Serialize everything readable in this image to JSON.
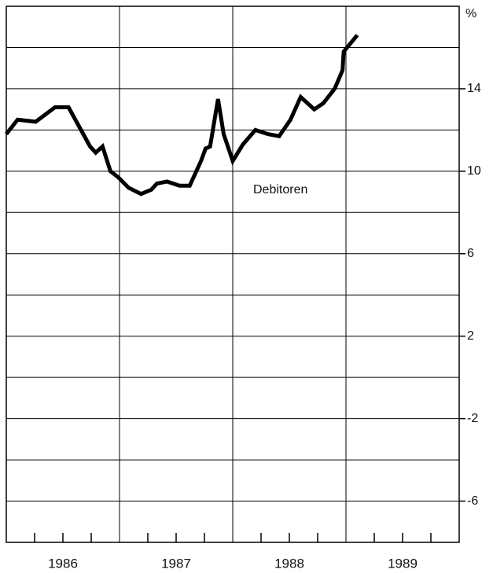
{
  "chart_data": {
    "type": "line",
    "ylabel": "%",
    "annotation": "Debitoren",
    "xlim": [
      1986,
      1990
    ],
    "xticks": [
      1986.25,
      1986.5,
      1986.75,
      1987.25,
      1987.5,
      1987.75,
      1988.25,
      1988.5,
      1988.75,
      1989.25,
      1989.5,
      1989.75
    ],
    "xgrid": [
      1987,
      1988,
      1989
    ],
    "xlabels": [
      {
        "value": 1986.5,
        "label": "1986"
      },
      {
        "value": 1987.5,
        "label": "1987"
      },
      {
        "value": 1988.5,
        "label": "1988"
      },
      {
        "value": 1989.5,
        "label": "1989"
      }
    ],
    "ylim": [
      -8,
      18
    ],
    "yticks": [
      -6,
      -2,
      2,
      6,
      10,
      14
    ],
    "ygrid": [
      -6,
      -4,
      -2,
      0,
      2,
      4,
      6,
      8,
      10,
      12,
      14,
      16
    ],
    "series": [
      {
        "color": "#000000",
        "x": [
          1986.0,
          1986.1,
          1986.26,
          1986.43,
          1986.55,
          1986.64,
          1986.74,
          1986.79,
          1986.85,
          1986.92,
          1986.99,
          1987.08,
          1987.19,
          1987.28,
          1987.33,
          1987.42,
          1987.53,
          1987.62,
          1987.72,
          1987.76,
          1987.8,
          1987.87,
          1987.92,
          1988.0,
          1988.09,
          1988.2,
          1988.31,
          1988.41,
          1988.51,
          1988.6,
          1988.72,
          1988.8,
          1988.9,
          1988.97,
          1988.98,
          1989.1
        ],
        "values": [
          11.8,
          12.5,
          12.4,
          13.1,
          13.1,
          12.2,
          11.2,
          10.9,
          11.2,
          10.0,
          9.7,
          9.2,
          8.9,
          9.1,
          9.4,
          9.5,
          9.3,
          9.3,
          10.5,
          11.1,
          11.2,
          13.5,
          11.8,
          10.5,
          11.3,
          12.0,
          11.8,
          11.7,
          12.5,
          13.6,
          13.0,
          13.3,
          14.0,
          14.9,
          15.8,
          16.6
        ]
      }
    ]
  }
}
